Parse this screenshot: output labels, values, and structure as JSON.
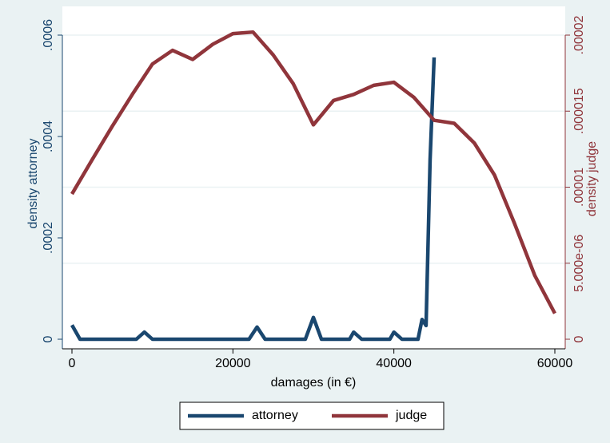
{
  "chart_data": {
    "type": "line",
    "x_label": "damages (in €)",
    "y_label": "density attorney",
    "y2_label": "density judge",
    "xlim": [
      0,
      60000
    ],
    "xticks": [
      0,
      20000,
      40000,
      60000
    ],
    "ylim": [
      0,
      0.0006
    ],
    "yticks": [
      0,
      {
        "value": 0.0002,
        "label": ".0002"
      },
      {
        "value": 0.0004,
        "label": ".0004"
      },
      {
        "value": 0.0006,
        "label": ".0006"
      }
    ],
    "y2lim": [
      0,
      2e-05
    ],
    "y2ticks": [
      0,
      {
        "value": 5e-06,
        "label": "5.000e-06"
      },
      {
        "value": 1e-05,
        "label": ".00001"
      },
      {
        "value": 1.5e-05,
        "label": ".000015"
      },
      {
        "value": 2e-05,
        "label": ".00002"
      }
    ],
    "grid": true,
    "legend": "bottom",
    "series": [
      {
        "name": "attorney",
        "color": "#1a476f",
        "x": [
          0,
          1000,
          8000,
          9000,
          10000,
          22000,
          23000,
          24000,
          29000,
          30000,
          31000,
          34500,
          35000,
          36000,
          39500,
          40000,
          41000,
          43000,
          43500,
          44000,
          44500,
          45000
        ],
        "values": [
          2.8e-05,
          0,
          0,
          1.4e-05,
          0,
          0,
          2.4e-05,
          0,
          0,
          4.3e-05,
          0,
          0,
          1.4e-05,
          0,
          0,
          1.4e-05,
          0,
          0,
          3.9e-05,
          2.7e-05,
          0.000354,
          0.000556
        ]
      },
      {
        "name": "judge",
        "color": "#90353b",
        "axis": "y2",
        "x": [
          0,
          2500,
          5000,
          7500,
          10000,
          12500,
          15000,
          17500,
          20000,
          22500,
          25000,
          27500,
          30000,
          32500,
          35000,
          37500,
          40000,
          42500,
          45000,
          47500,
          50000,
          52500,
          55000,
          57500,
          60000
        ],
        "values": [
          9.55e-06,
          1.18e-05,
          1.4e-05,
          1.61e-05,
          1.81e-05,
          1.9e-05,
          1.84e-05,
          1.94e-05,
          2.01e-05,
          2.02e-05,
          1.87e-05,
          1.68e-05,
          1.41e-05,
          1.57e-05,
          1.61e-05,
          1.67e-05,
          1.69e-05,
          1.59e-05,
          1.44e-05,
          1.42e-05,
          1.29e-05,
          1.08e-05,
          7.6e-06,
          4.2e-06,
          1.7e-06
        ]
      }
    ]
  }
}
